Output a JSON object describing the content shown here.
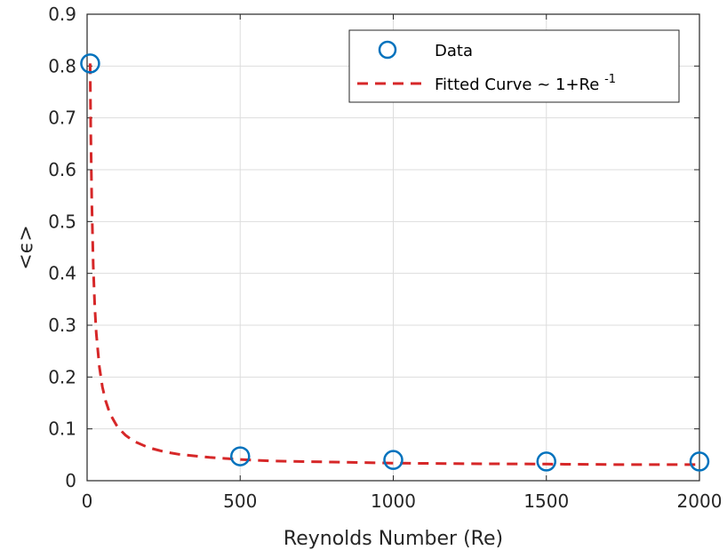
{
  "chart_data": {
    "type": "line",
    "title": "",
    "xlabel": "Reynolds Number (Re)",
    "ylabel": "<ϵ>",
    "xlim": [
      0,
      2000
    ],
    "ylim": [
      0,
      0.9
    ],
    "xticks": [
      0,
      500,
      1000,
      1500,
      2000
    ],
    "xtick_labels": [
      "0",
      "500",
      "1000",
      "1500",
      "2000"
    ],
    "yticks": [
      0,
      0.1,
      0.2,
      0.3,
      0.4,
      0.5,
      0.6,
      0.7,
      0.8,
      0.9
    ],
    "ytick_labels": [
      "0",
      "0.1",
      "0.2",
      "0.3",
      "0.4",
      "0.5",
      "0.6",
      "0.7",
      "0.8",
      "0.9"
    ],
    "grid": true,
    "legend_position": "top-right",
    "series": [
      {
        "name": "Data",
        "kind": "scatter",
        "marker": "circle",
        "color": "#0072bd",
        "x": [
          10,
          500,
          1000,
          1500,
          2000
        ],
        "y": [
          0.805,
          0.047,
          0.04,
          0.037,
          0.037
        ]
      },
      {
        "name": "Fitted Curve ~ 1+Re",
        "name_superscript": "-1",
        "kind": "line",
        "line_style": "dashed",
        "color": "#d62728",
        "x": [
          10,
          12,
          15,
          20,
          25,
          30,
          40,
          50,
          60,
          75,
          100,
          125,
          150,
          200,
          250,
          300,
          400,
          500,
          600,
          800,
          1000,
          1200,
          1500,
          1750,
          2000
        ],
        "y": [
          0.805,
          0.677,
          0.545,
          0.415,
          0.337,
          0.285,
          0.22,
          0.181,
          0.155,
          0.129,
          0.103,
          0.088,
          0.077,
          0.064,
          0.056,
          0.051,
          0.045,
          0.041,
          0.038,
          0.036,
          0.034,
          0.033,
          0.032,
          0.031,
          0.031
        ]
      }
    ]
  }
}
